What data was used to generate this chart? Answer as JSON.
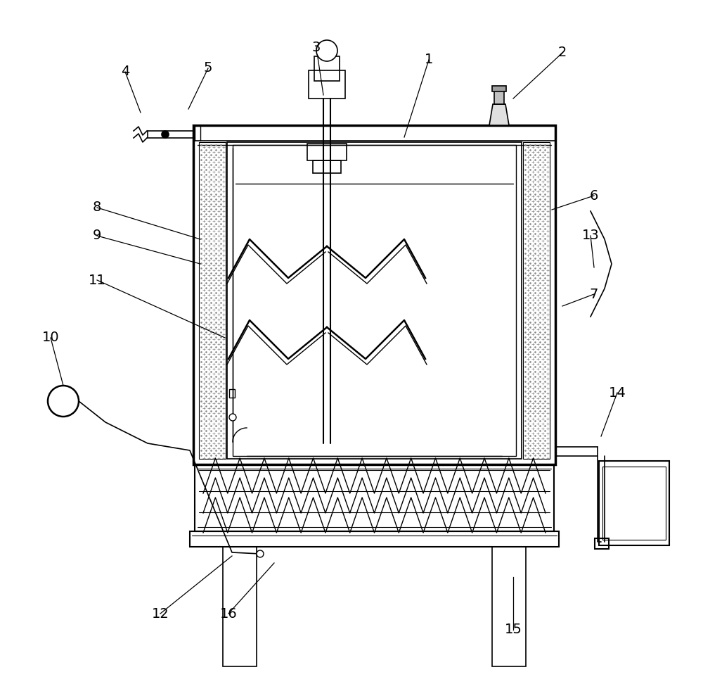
{
  "bg_color": "#ffffff",
  "line_color": "#000000",
  "fig_width": 10.0,
  "fig_height": 9.72,
  "dpi": 100
}
